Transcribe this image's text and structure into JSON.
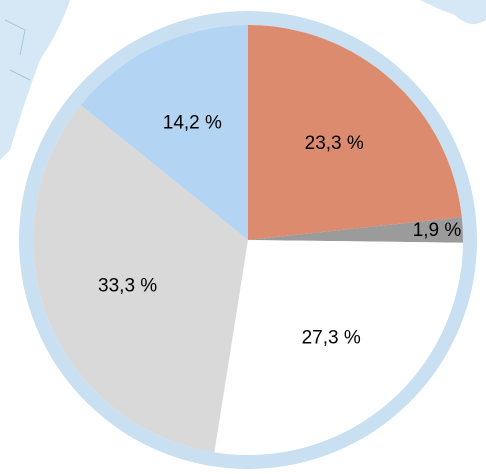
{
  "chart_data": {
    "type": "pie",
    "categories": [
      null,
      null,
      null,
      null,
      null
    ],
    "values": [
      23.3,
      1.9,
      27.3,
      33.3,
      14.2
    ],
    "value_labels": [
      "23,3 %",
      "1,9 %",
      "27,3 %",
      "33,3 %",
      "14,2 %"
    ],
    "colors": [
      "#dc8b6e",
      "#9b9b9b",
      "#ffffff",
      "#d9d9d9",
      "#b3d4f2"
    ]
  }
}
